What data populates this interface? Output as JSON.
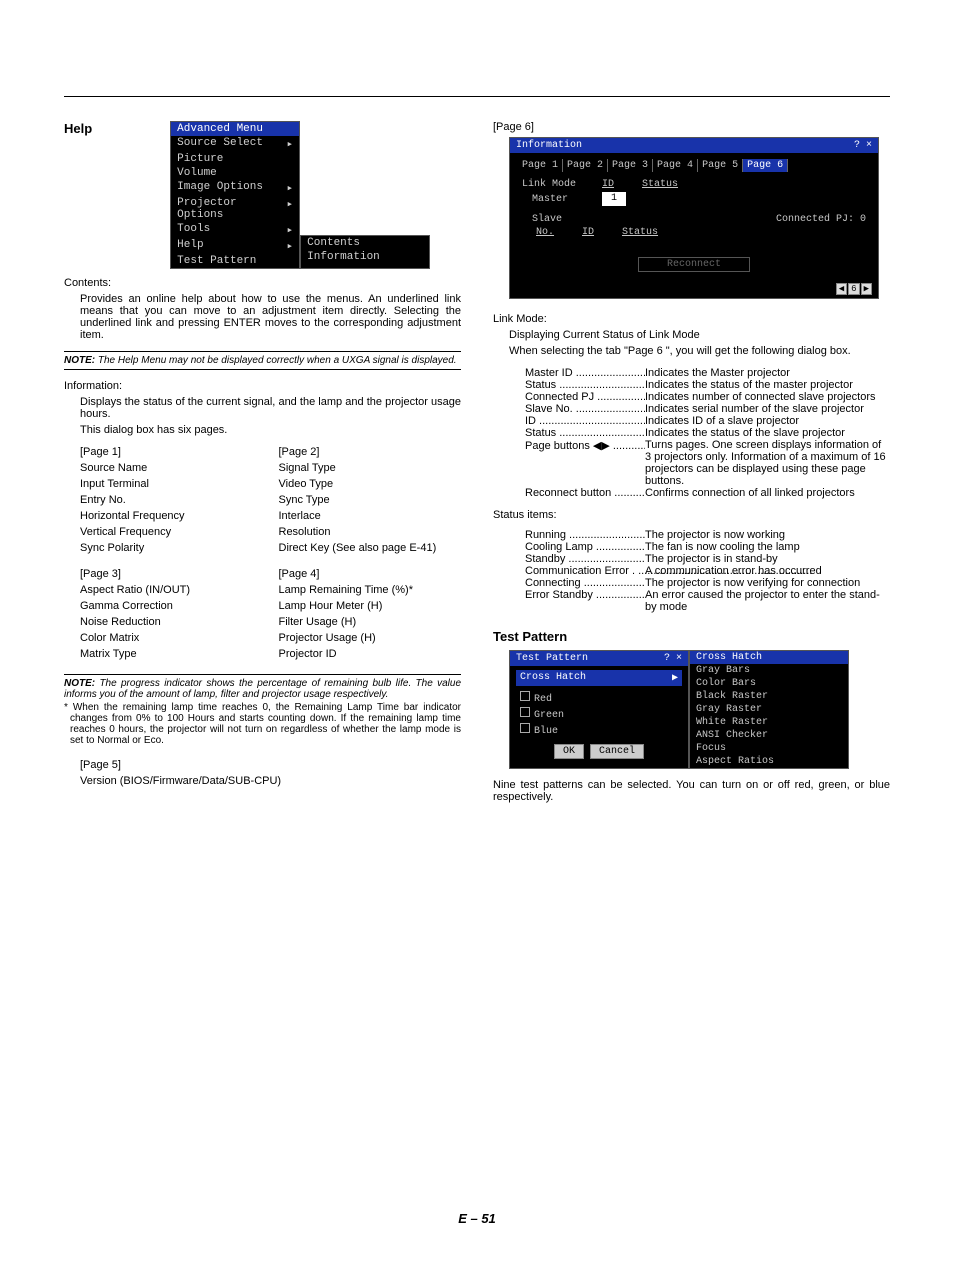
{
  "leftCol": {
    "help": {
      "title": "Help",
      "menuMain": {
        "header": "Advanced Menu",
        "items": [
          {
            "label": "Source Select",
            "arrow": true
          },
          {
            "label": "Picture",
            "arrow": false
          },
          {
            "label": "Volume",
            "arrow": false
          },
          {
            "label": "Image Options",
            "arrow": true
          },
          {
            "label": "Projector Options",
            "arrow": true
          },
          {
            "label": "Tools",
            "arrow": true
          },
          {
            "label": "Help",
            "arrow": true
          },
          {
            "label": "Test Pattern",
            "arrow": false
          }
        ]
      },
      "menuSub": [
        "Contents",
        "Information"
      ],
      "contentsLabel": "Contents:",
      "contentsDesc": "Provides an online help about how to use the menus. An underlined link means that you can move to an adjustment item directly. Selecting the underlined link and pressing ENTER moves to the corresponding adjustment item.",
      "note1Label": "NOTE:",
      "note1": "The Help Menu may not be displayed correctly when a UXGA signal is displayed.",
      "infoLabel": "Information:",
      "infoDesc1": "Displays the status of the current signal, and the lamp and the projector usage hours.",
      "infoDesc2": "This dialog box has six pages.",
      "pages12": {
        "left": [
          "[Page 1]",
          "Source Name",
          "Input Terminal",
          "Entry No.",
          "Horizontal Frequency",
          "Vertical Frequency",
          "Sync Polarity"
        ],
        "right": [
          "[Page 2]",
          "Signal Type",
          "Video Type",
          "Sync Type",
          "Interlace",
          "Resolution",
          "Direct Key (See also page E-41)"
        ]
      },
      "pages34": {
        "left": [
          "[Page 3]",
          "Aspect Ratio (IN/OUT)",
          "Gamma Correction",
          "Noise Reduction",
          "Color Matrix",
          "Matrix Type"
        ],
        "right": [
          "[Page 4]",
          "Lamp Remaining Time (%)*",
          "Lamp Hour Meter (H)",
          "Filter Usage (H)",
          "Projector Usage (H)",
          "Projector ID"
        ]
      },
      "note2Label": "NOTE:",
      "note2": "The progress indicator shows the percentage of remaining bulb life. The value informs you of the amount of lamp, filter and projector usage respectively.",
      "note2star": "* When the remaining lamp time reaches 0, the Remaining Lamp Time bar indicator changes from 0% to 100 Hours and starts counting down. If the remaining lamp time reaches 0 hours, the projector will not turn on regardless of whether the lamp mode is set to Normal or Eco.",
      "page5a": "[Page 5]",
      "page5b": "Version (BIOS/Firmware/Data/SUB-CPU)"
    }
  },
  "rightCol": {
    "page6Label": "[Page 6]",
    "infoShot": {
      "title": "Information",
      "titleIcons": "? ×",
      "tabs": [
        "Page 1",
        "Page 2",
        "Page 3",
        "Page 4",
        "Page 5",
        "Page 6"
      ],
      "selected": 5,
      "linkModeLabel": "Link Mode",
      "idLabel": "ID",
      "statusLabel": "Status",
      "masterLabel": "Master",
      "masterId": "1",
      "slaveLabel": "Slave",
      "connectedPJ": "Connected PJ:  0",
      "noLabel": "No.",
      "reconnect": "Reconnect",
      "pager": [
        "◀",
        "6",
        "▶"
      ]
    },
    "linkModeTitle": "Link Mode:",
    "linkModeDesc1": "Displaying Current Status of Link Mode",
    "linkModeDesc2": "When selecting the tab \"Page 6 \", you will get the following dialog box.",
    "defs": [
      {
        "t": "Master ID",
        "d": "Indicates the Master projector"
      },
      {
        "t": "Status",
        "d": "Indicates the status of the master projector"
      },
      {
        "t": "Connected PJ",
        "d": "Indicates number of connected slave projectors"
      },
      {
        "t": "Slave No.",
        "d": "Indicates serial number of the slave projector"
      },
      {
        "t": "ID",
        "d": "Indicates ID of a slave projector"
      },
      {
        "t": "Status",
        "d": "Indicates the status of the slave projector"
      },
      {
        "t": "Page buttons ◀▶",
        "d": "Turns pages. One screen displays information of 3 projectors only. Information of a maximum of 16 projectors can be displayed using these page buttons."
      },
      {
        "t": "Reconnect button",
        "d": "Confirms connection of all linked projectors"
      }
    ],
    "statusItemsTitle": "Status items:",
    "statusDefs": [
      {
        "t": "Running",
        "d": "The projector is now working"
      },
      {
        "t": "Cooling Lamp",
        "d": "The fan is now cooling the lamp"
      },
      {
        "t": "Standby",
        "d": "The projector is in stand-by"
      },
      {
        "t": "Communication Error",
        "d": "A communication error has occurred",
        "nodots": true
      },
      {
        "t": "Connecting",
        "d": "The projector is now verifying for connection"
      },
      {
        "t": "Error Standby",
        "d": "An error caused the projector to enter the stand-by mode"
      }
    ],
    "testPattern": {
      "title": "Test Pattern",
      "dialogTitle": "Test Pattern",
      "titleIcons": "? ×",
      "selected": "Cross Hatch",
      "checks": [
        "Red",
        "Green",
        "Blue"
      ],
      "ok": "OK",
      "cancel": "Cancel",
      "list": [
        "Cross Hatch",
        "Gray Bars",
        "Color Bars",
        "Black Raster",
        "Gray Raster",
        "White Raster",
        "ANSI Checker",
        "Focus",
        "Aspect Ratios"
      ],
      "desc": "Nine test patterns can be selected. You can turn on or off red, green, or blue respectively."
    }
  },
  "footer": "E – 51"
}
